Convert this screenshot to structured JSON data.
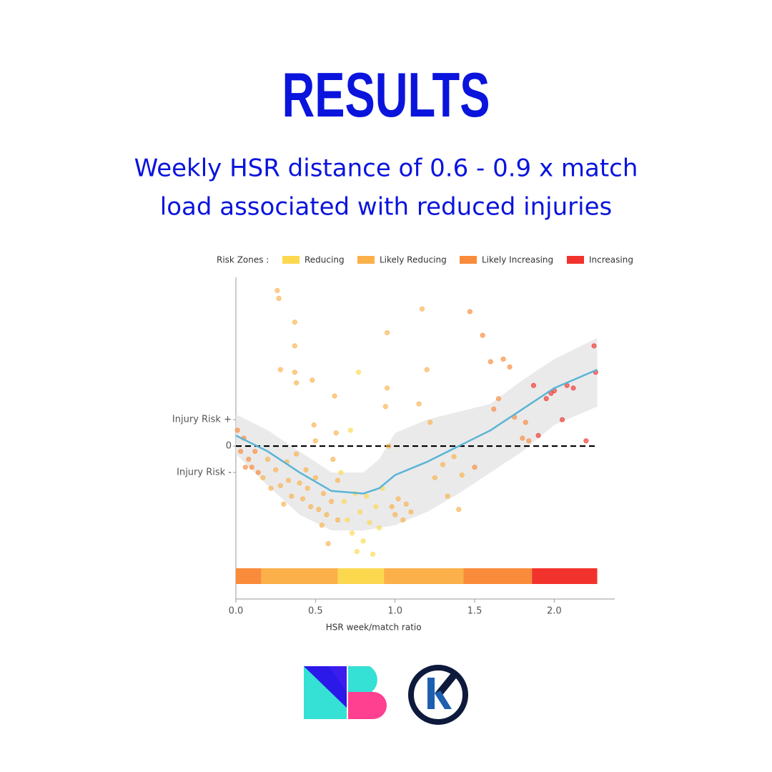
{
  "header": {
    "title": "RESULTS",
    "subtitle": [
      "Weekly HSR distance of 0.6 - 0.9 x match",
      "load associated with reduced injuries"
    ]
  },
  "chart_data": {
    "type": "scatter",
    "x_label": "HSR week/match ratio",
    "legend_title": "Risk Zones :",
    "zones": [
      {
        "name": "Reducing",
        "color": "#fcd84f"
      },
      {
        "name": "Likely Reducing",
        "color": "#fbb04a"
      },
      {
        "name": "Likely Increasing",
        "color": "#f98b3a"
      },
      {
        "name": "Increasing",
        "color": "#f2322c"
      }
    ],
    "strip": {
      "edges": [
        0,
        0.16,
        0.64,
        0.93,
        1.43,
        1.86,
        2.27
      ],
      "colors": [
        "#f98b3a",
        "#fbb04a",
        "#fcd84f",
        "#fbb04a",
        "#f98b3a",
        "#f2322c"
      ]
    },
    "xlim": [
      0,
      2.38
    ],
    "ylim": [
      -5.8,
      6.4
    ],
    "xticks": [
      {
        "value": 0,
        "label": "0.0"
      },
      0.5,
      {
        "value": 1,
        "label": "1.0"
      },
      1.5,
      {
        "value": 2,
        "label": "2.0"
      }
    ],
    "yticks": [
      {
        "value": 1,
        "label": "Injury Risk +"
      },
      0,
      {
        "value": -1,
        "label": "Injury Risk -"
      }
    ],
    "hline": 0,
    "series": [
      {
        "x": [
          0.01,
          0.03,
          0.05,
          0.08,
          0.1,
          0.12,
          0.14,
          0.06,
          0.17,
          0.2,
          0.22,
          0.25,
          0.26,
          0.27,
          0.28,
          0.28,
          0.3,
          0.32,
          0.33,
          0.35,
          0.37,
          0.37,
          0.37,
          0.38,
          0.38,
          0.4,
          0.42,
          0.44,
          0.45,
          0.47,
          0.48,
          0.49,
          0.5,
          0.5,
          0.52,
          0.54,
          0.55,
          0.57,
          0.58,
          0.6,
          0.61,
          0.62,
          0.63,
          0.64,
          0.64,
          0.66,
          0.68,
          0.7,
          0.72,
          0.73,
          0.75,
          0.76,
          0.77,
          0.78,
          0.8,
          0.82,
          0.84,
          0.86,
          0.88,
          0.9,
          0.92,
          0.94,
          0.95,
          0.95,
          0.96,
          0.98,
          1.0,
          1.02,
          1.05,
          1.07,
          1.1,
          1.15,
          1.17,
          1.2,
          1.22,
          1.25,
          1.3,
          1.33,
          1.37,
          1.4,
          1.42,
          1.47,
          1.5,
          1.55,
          1.6,
          1.62,
          1.65,
          1.68,
          1.72,
          1.75,
          1.8,
          1.82,
          1.84,
          1.87,
          1.9,
          1.95,
          1.98,
          2.0,
          2.05,
          2.08,
          2.12,
          2.2,
          2.25,
          2.26
        ],
        "values": [
          0.6,
          -0.2,
          0.3,
          -0.5,
          -0.8,
          -0.2,
          -1.0,
          -0.8,
          -1.2,
          -0.5,
          -1.6,
          -0.9,
          5.9,
          5.6,
          -1.5,
          2.9,
          -2.2,
          -0.6,
          -1.3,
          -1.9,
          4.7,
          3.8,
          2.8,
          2.4,
          -0.3,
          -1.4,
          -2.0,
          -0.9,
          -1.6,
          -2.3,
          2.5,
          0.8,
          0.2,
          -1.2,
          -2.4,
          -3.0,
          -1.8,
          -2.6,
          -3.7,
          -2.1,
          -0.5,
          1.9,
          0.5,
          -1.3,
          -2.8,
          -1.0,
          -2.1,
          -2.8,
          0.6,
          -3.3,
          -1.8,
          -4.0,
          2.8,
          -2.5,
          -3.6,
          -1.9,
          -2.9,
          -4.1,
          -2.3,
          -3.1,
          -1.6,
          1.5,
          4.3,
          2.2,
          0.0,
          -2.3,
          -2.6,
          -2.0,
          -2.8,
          -2.2,
          -2.5,
          1.6,
          5.2,
          2.9,
          0.9,
          -1.2,
          -0.7,
          -1.9,
          -0.4,
          -2.4,
          -1.1,
          5.1,
          -0.8,
          4.2,
          3.2,
          1.4,
          1.8,
          3.3,
          3.0,
          1.1,
          0.3,
          0.9,
          0.2,
          2.3,
          0.4,
          1.8,
          2.0,
          2.1,
          1.0,
          2.3,
          2.2,
          0.2,
          3.8,
          2.8
        ]
      }
    ],
    "fit": {
      "color": "#5ab4d6",
      "x": [
        0,
        0.2,
        0.4,
        0.6,
        0.7,
        0.8,
        0.9,
        1.0,
        1.2,
        1.4,
        1.6,
        1.8,
        2.0,
        2.27
      ],
      "values": [
        0.4,
        -0.2,
        -1.0,
        -1.7,
        -1.75,
        -1.8,
        -1.6,
        -1.1,
        -0.6,
        0.0,
        0.6,
        1.4,
        2.2,
        2.9
      ],
      "upper": [
        1.2,
        0.6,
        -0.2,
        -1.0,
        -1.0,
        -1.0,
        -0.5,
        0.5,
        1.0,
        1.3,
        1.6,
        2.5,
        3.3,
        4.1
      ],
      "lower": [
        -0.3,
        -1.5,
        -2.6,
        -3.2,
        -3.2,
        -3.2,
        -3.1,
        -3.0,
        -2.5,
        -1.8,
        -1.0,
        -0.2,
        0.8,
        1.5
      ]
    }
  }
}
